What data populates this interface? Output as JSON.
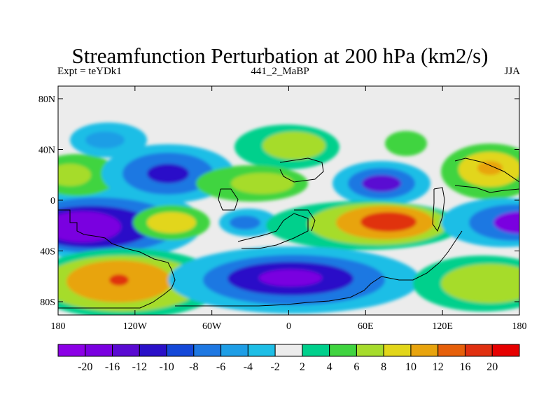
{
  "title": "Streamfunction Perturbation at 200 hPa (km2/s)",
  "subtitle_left": "Expt = teYDk1",
  "subtitle_center": "441_2_MaBP",
  "subtitle_right": "JJA",
  "map": {
    "lat_ticks": [
      "80N",
      "40N",
      "0",
      "40S",
      "80S"
    ],
    "lon_ticks": [
      "180",
      "120W",
      "60W",
      "0",
      "60E",
      "120E",
      "180"
    ]
  },
  "colorbar": {
    "labels": [
      "-20",
      "-16",
      "-12",
      "-10",
      "-8",
      "-6",
      "-4",
      "-2",
      "2",
      "4",
      "6",
      "8",
      "10",
      "12",
      "16",
      "20"
    ],
    "colors": [
      "#8c00e6",
      "#7a00e0",
      "#5a0ad2",
      "#2a10c8",
      "#1448d8",
      "#1e78e2",
      "#1e9ee6",
      "#1ebee6",
      "#ececec",
      "#00d08c",
      "#40d440",
      "#a6dc2c",
      "#e2d61a",
      "#e8a40e",
      "#e6600a",
      "#e03010",
      "#e60000"
    ]
  },
  "colors": {
    "land_outline": "#000000",
    "background": "#ececec"
  }
}
